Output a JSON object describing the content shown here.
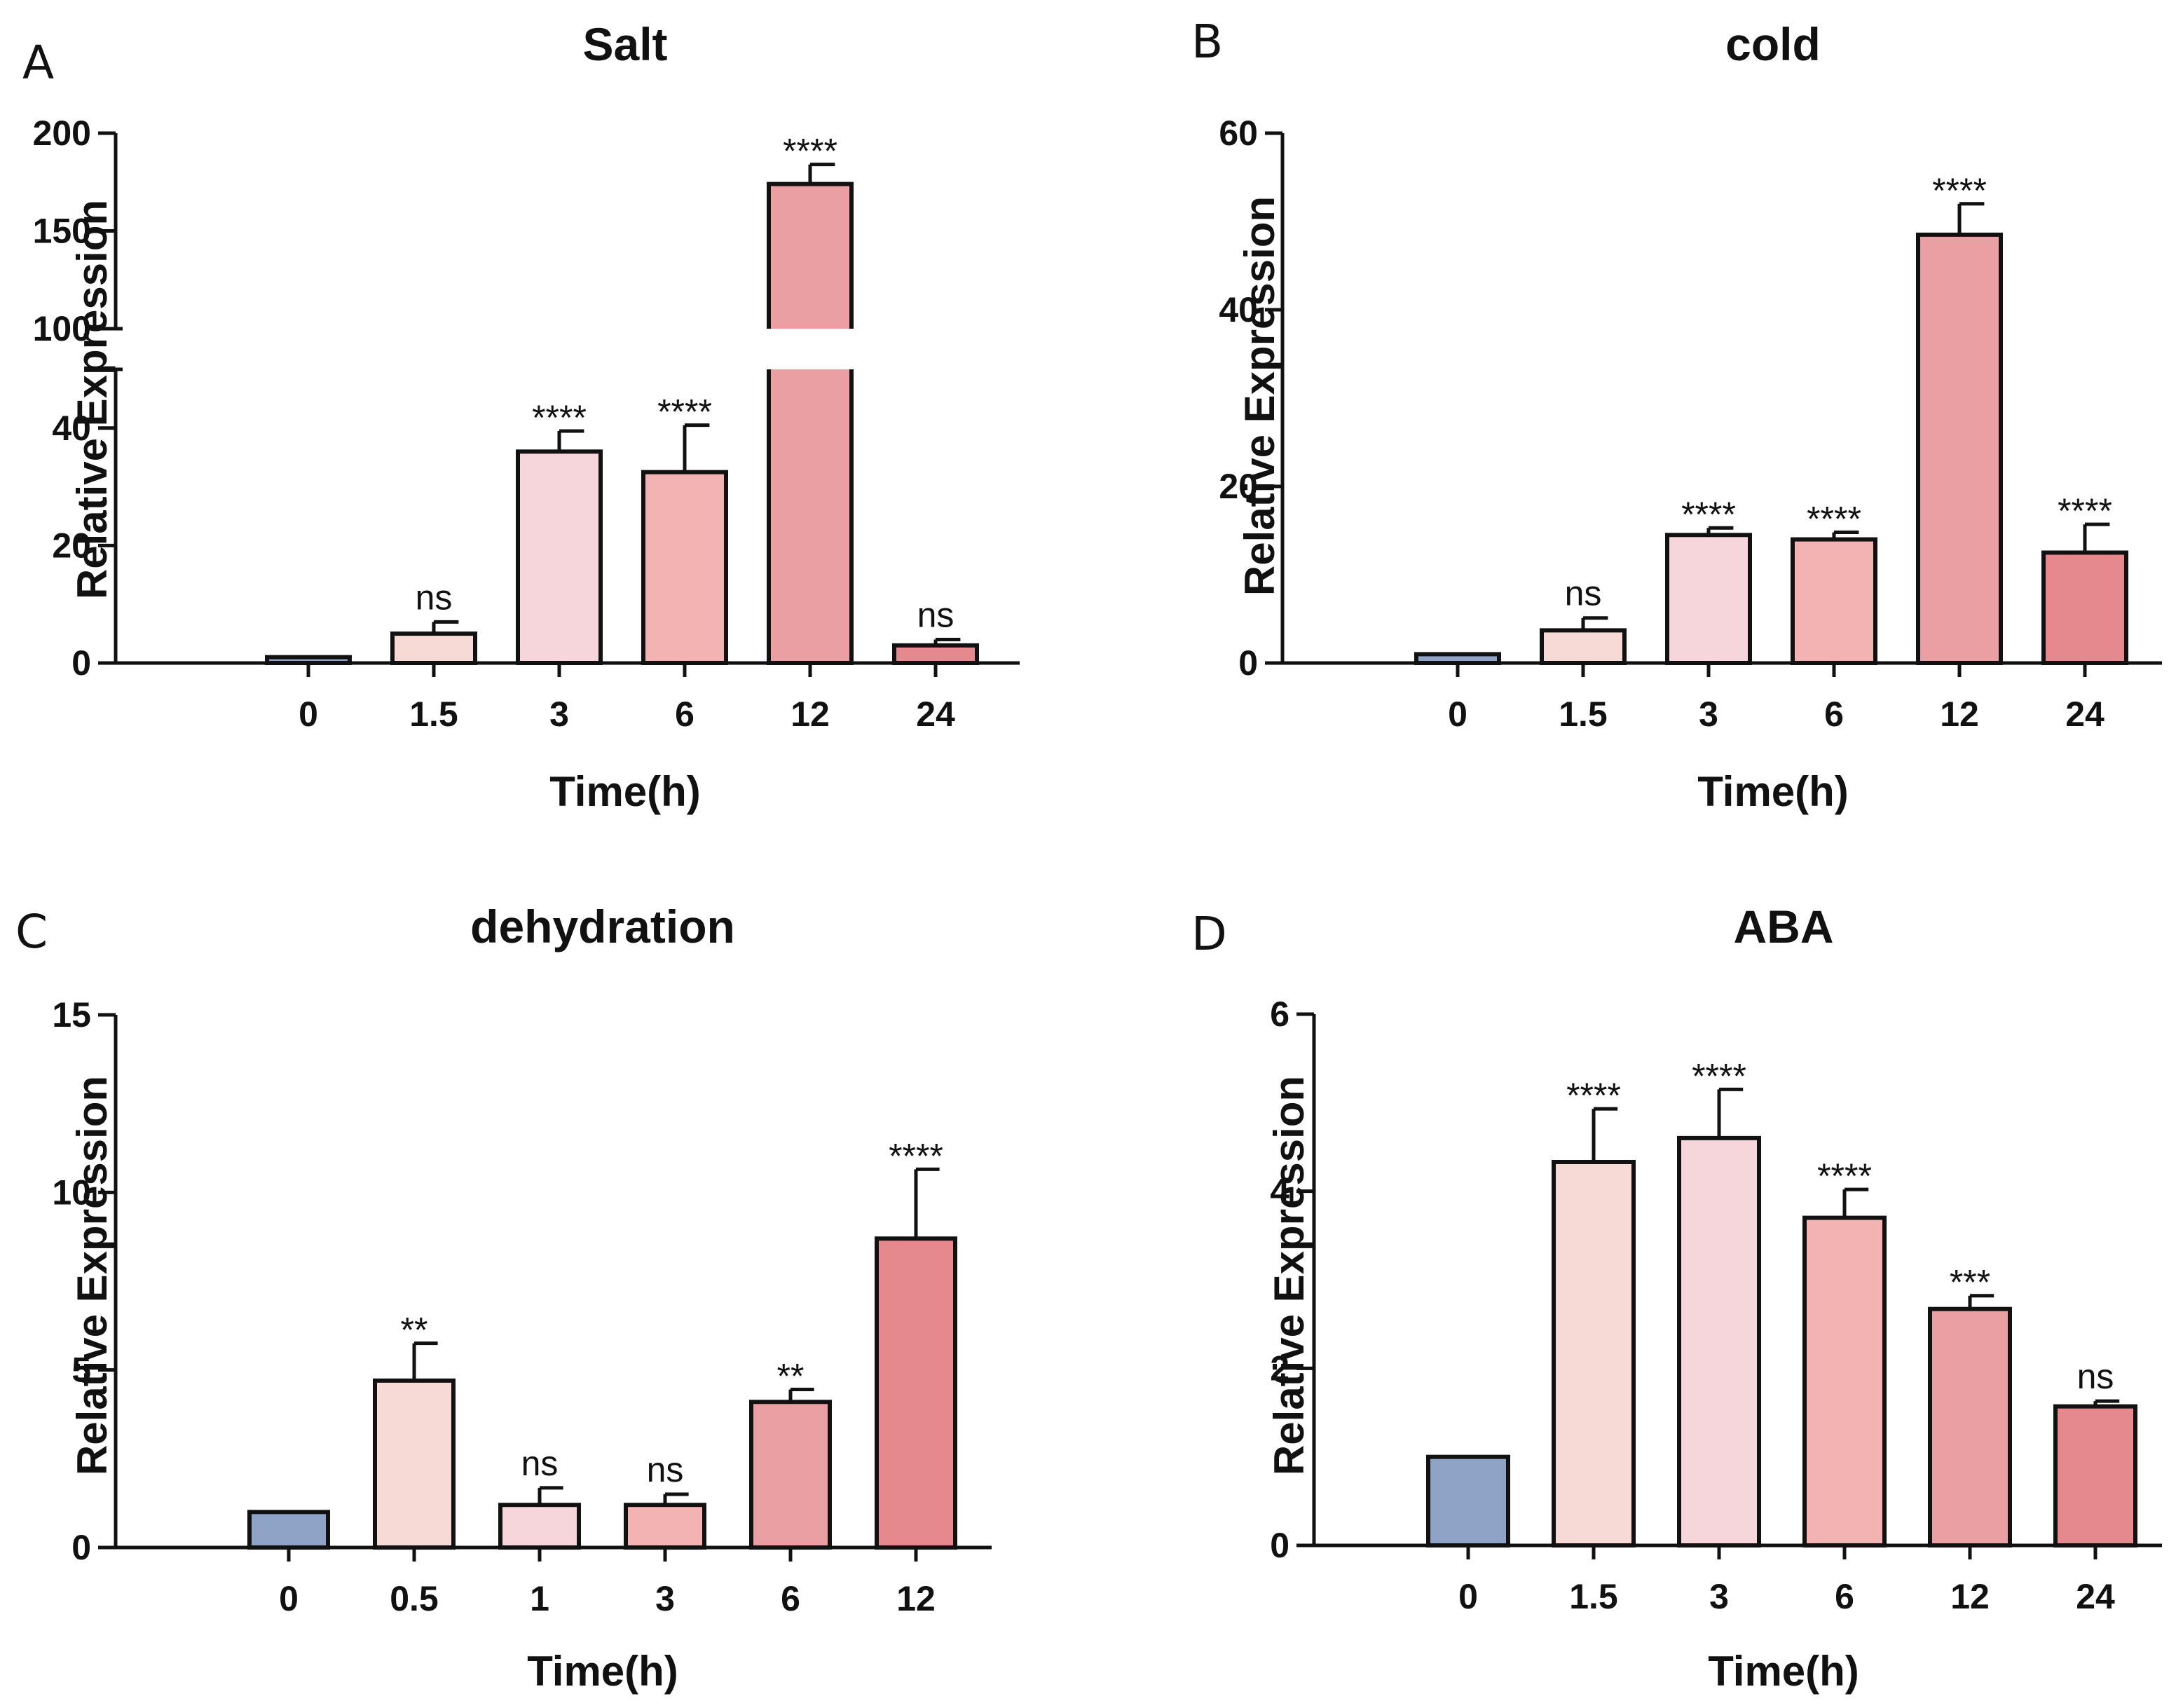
{
  "figure": {
    "panels": [
      {
        "letter": "A"
      },
      {
        "letter": "B"
      },
      {
        "letter": "C"
      },
      {
        "letter": "D"
      }
    ]
  },
  "chart_data": [
    {
      "type": "bar",
      "title": "Salt",
      "xlabel": "Time(h)",
      "ylabel": "Relative Expression",
      "categories": [
        "0",
        "1.5",
        "3",
        "6",
        "12",
        "24"
      ],
      "values": [
        1,
        5,
        36,
        32.5,
        174,
        3
      ],
      "errors": [
        0,
        2,
        3.5,
        8,
        10,
        1
      ],
      "significance": [
        "",
        "ns",
        "****",
        "****",
        "****",
        "ns"
      ],
      "colors": [
        "#8fa3c6",
        "#f7dad6",
        "#f7d6db",
        "#f3b3b3",
        "#eaa0a3",
        "#e5898e"
      ],
      "y_axis_break": {
        "lower": [
          0,
          50
        ],
        "upper": [
          100,
          200
        ]
      },
      "yticks": [
        0,
        20,
        40,
        100,
        150,
        200
      ]
    },
    {
      "type": "bar",
      "title": "cold",
      "xlabel": "Time(h)",
      "ylabel": "Relative Expression",
      "categories": [
        "0",
        "1.5",
        "3",
        "6",
        "12",
        "24"
      ],
      "values": [
        1,
        3.7,
        14.5,
        14,
        48.5,
        12.5
      ],
      "errors": [
        0,
        1.4,
        0.8,
        0.8,
        3.5,
        3.2
      ],
      "significance": [
        "",
        "ns",
        "****",
        "****",
        "****",
        "****"
      ],
      "colors": [
        "#8fa3c6",
        "#f7dad6",
        "#f7d6db",
        "#f3b3b3",
        "#eaa0a3",
        "#e5898e"
      ],
      "ylim": [
        0,
        60
      ],
      "yticks": [
        0,
        20,
        40,
        60
      ]
    },
    {
      "type": "bar",
      "title": "dehydration",
      "xlabel": "Time(h)",
      "ylabel": "Relative Expression",
      "categories": [
        "0",
        "0.5",
        "1",
        "3",
        "6",
        "12"
      ],
      "values": [
        1,
        4.7,
        1.2,
        1.2,
        4.1,
        8.7
      ],
      "errors": [
        0,
        1.05,
        0.48,
        0.3,
        0.35,
        1.95
      ],
      "significance": [
        "",
        "**",
        "ns",
        "ns",
        "**",
        "****"
      ],
      "colors": [
        "#8fa3c6",
        "#f7dad6",
        "#f7d6db",
        "#f3b3b3",
        "#eaa0a3",
        "#e5898e"
      ],
      "ylim": [
        0,
        15
      ],
      "yticks": [
        0,
        5,
        10,
        15
      ]
    },
    {
      "type": "bar",
      "title": "ABA",
      "xlabel": "Time(h)",
      "ylabel": "Relative Expression",
      "categories": [
        "0",
        "1.5",
        "3",
        "6",
        "12",
        "24"
      ],
      "values": [
        1,
        4.33,
        4.6,
        3.7,
        2.67,
        1.57
      ],
      "errors": [
        0,
        0.6,
        0.55,
        0.32,
        0.15,
        0.06
      ],
      "significance": [
        "",
        "****",
        "****",
        "****",
        "***",
        "ns"
      ],
      "colors": [
        "#8fa3c6",
        "#f7dad6",
        "#f7d6db",
        "#f3b3b3",
        "#eaa0a3",
        "#e5898e"
      ],
      "ylim": [
        0,
        6
      ],
      "yticks": [
        0,
        2,
        4,
        6
      ]
    }
  ]
}
